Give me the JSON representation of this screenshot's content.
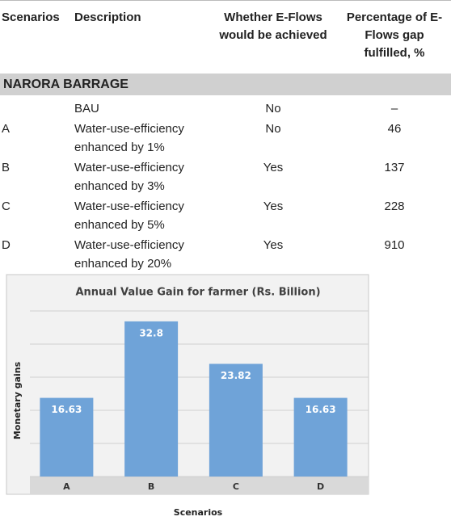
{
  "table": {
    "headers": [
      "Scenarios",
      "Description",
      "Whether E-Flows would be achieved",
      "Percentage of E-Flows gap fulfilled, %"
    ],
    "section": "NARORA BARRAGE",
    "rows": [
      [
        null,
        "BAU",
        "No",
        "–"
      ],
      [
        "A",
        "Water-use-efficiency enhanced by 1%",
        "No",
        46
      ],
      [
        "B",
        "Water-use-efficiency enhanced by 3%",
        "Yes",
        137
      ],
      [
        "C",
        "Water-use-efficiency enhanced by 5%",
        "Yes",
        228
      ],
      [
        "D",
        "Water-use-efficiency enhanced by 20%",
        "Yes",
        910
      ]
    ]
  },
  "chart_data": {
    "type": "bar",
    "title": "Annual Value Gain for farmer (Rs. Billion)",
    "x_label": "Scenarios",
    "y_label": "Monetary  gains",
    "categories": [
      "A",
      "B",
      "C",
      "D"
    ],
    "values": [
      16.63,
      32.8,
      23.82,
      16.63
    ],
    "color": "#6fa3d8",
    "ylim": [
      0,
      35
    ],
    "yticks": [
      0,
      7,
      14,
      21,
      28,
      35
    ],
    "grid": true
  }
}
